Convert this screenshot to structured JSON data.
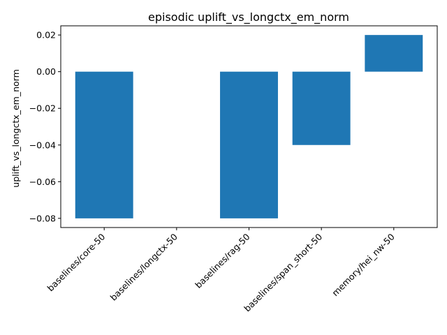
{
  "chart_data": {
    "type": "bar",
    "title": "episodic uplift_vs_longctx_em_norm",
    "xlabel": "",
    "ylabel": "uplift_vs_longctx_em_norm",
    "categories": [
      "baselines/core-50",
      "baselines/longctx-50",
      "baselines/rag-50",
      "baselines/span_short-50",
      "memory/hei_nw-50"
    ],
    "values": [
      -0.08,
      0.0,
      -0.08,
      -0.04,
      0.02
    ],
    "ylim": [
      -0.085,
      0.025
    ],
    "yticks": [
      -0.08,
      -0.06,
      -0.04,
      -0.02,
      0.0,
      0.02
    ],
    "ytick_labels": [
      "−0.08",
      "−0.06",
      "−0.04",
      "−0.02",
      "0.00",
      "0.02"
    ],
    "bar_color": "#1f77b4",
    "grid": false,
    "legend": "none"
  }
}
